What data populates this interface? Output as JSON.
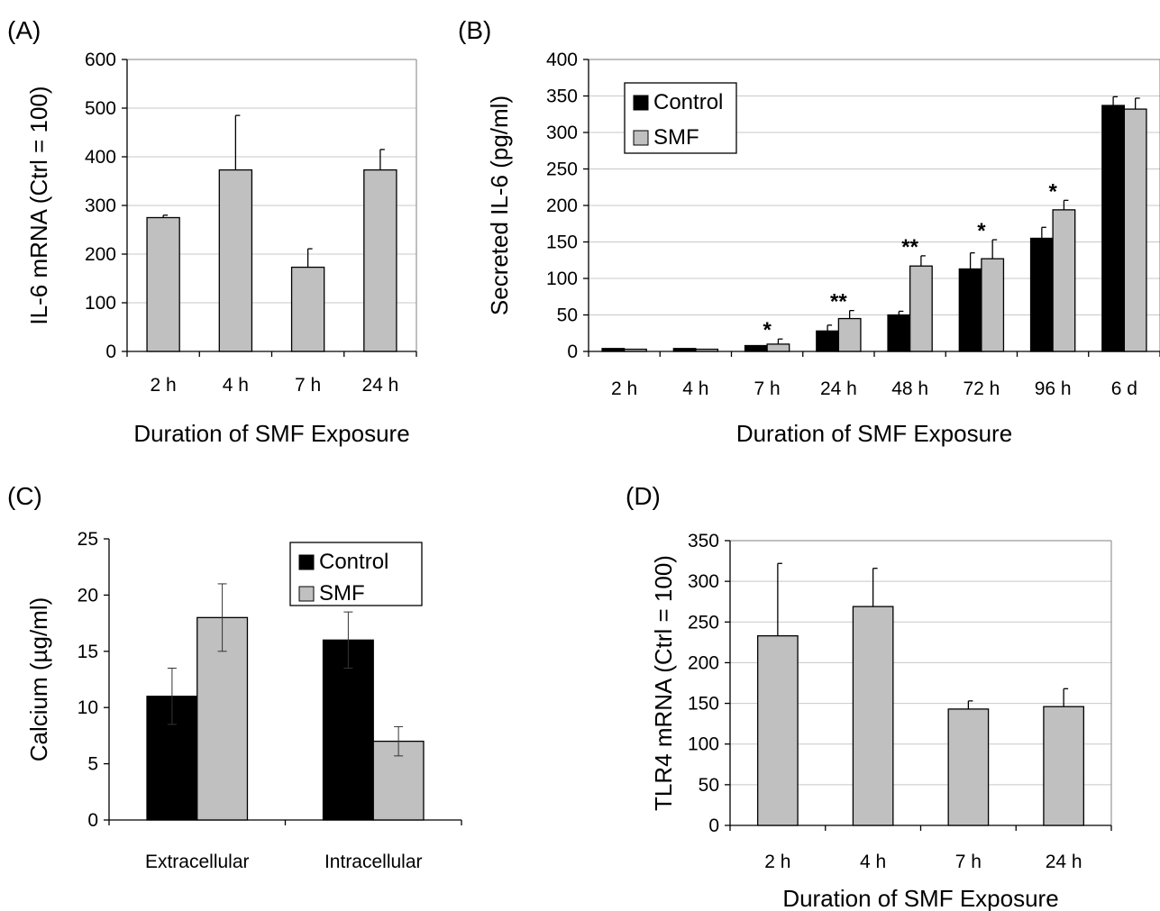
{
  "colors": {
    "control": "#000000",
    "smf": "#c0c0c0",
    "grid": "#c8c8c8",
    "axis": "#000000"
  },
  "chart_data": [
    {
      "panel_label": "(A)",
      "type": "bar",
      "categories": [
        "2 h",
        "4 h",
        "7 h",
        "24 h"
      ],
      "series": [
        {
          "color": "smf",
          "values": [
            275,
            373,
            173,
            373
          ],
          "errors": [
            5,
            112,
            38,
            42
          ]
        }
      ],
      "xlabel": "Duration of SMF Exposure",
      "ylabel": "IL-6 mRNA (Ctrl = 100)",
      "ylim": [
        0,
        600
      ],
      "yticks": [
        0,
        100,
        200,
        300,
        400,
        500,
        600
      ],
      "grid": true
    },
    {
      "panel_label": "(B)",
      "type": "bar",
      "categories": [
        "2 h",
        "4 h",
        "7 h",
        "24 h",
        "48 h",
        "72 h",
        "96 h",
        "6 d"
      ],
      "series": [
        {
          "name": "Control",
          "color": "control",
          "values": [
            4,
            4,
            8,
            28,
            50,
            113,
            155,
            337
          ],
          "errors": [
            0,
            0,
            0,
            8,
            5,
            22,
            15,
            12
          ]
        },
        {
          "name": "SMF",
          "color": "smf",
          "values": [
            3,
            3,
            10,
            45,
            117,
            127,
            194,
            332
          ],
          "errors": [
            0,
            0,
            7,
            11,
            14,
            26,
            13,
            15
          ]
        }
      ],
      "significance": [
        "",
        "",
        "*",
        "**",
        "**",
        "*",
        "*",
        ""
      ],
      "legend": "top-left",
      "xlabel": "Duration of SMF Exposure",
      "ylabel": "Secreted IL-6 (pg/ml)",
      "ylim": [
        0,
        400
      ],
      "yticks": [
        0,
        50,
        100,
        150,
        200,
        250,
        300,
        350,
        400
      ],
      "grid": true
    },
    {
      "panel_label": "(C)",
      "type": "bar",
      "categories": [
        "Extracellular",
        "Intracellular"
      ],
      "series": [
        {
          "name": "Control",
          "color": "control",
          "values": [
            11,
            16
          ],
          "errors": [
            2.5,
            2.5
          ]
        },
        {
          "name": "SMF",
          "color": "smf",
          "values": [
            18,
            7
          ],
          "errors": [
            3,
            1.3
          ]
        }
      ],
      "legend": "top-right",
      "xlabel": "",
      "ylabel": "Calcium (µg/ml)",
      "ylim": [
        0,
        25
      ],
      "yticks": [
        0,
        5,
        10,
        15,
        20,
        25
      ],
      "grid": false
    },
    {
      "panel_label": "(D)",
      "type": "bar",
      "categories": [
        "2 h",
        "4 h",
        "7 h",
        "24 h"
      ],
      "series": [
        {
          "color": "smf",
          "values": [
            233,
            269,
            143,
            146
          ],
          "errors": [
            89,
            47,
            10,
            22
          ]
        }
      ],
      "xlabel": "Duration of SMF Exposure",
      "ylabel": "TLR4 mRNA (Ctrl = 100)",
      "ylim": [
        0,
        350
      ],
      "yticks": [
        0,
        50,
        100,
        150,
        200,
        250,
        300,
        350
      ],
      "grid": true
    }
  ]
}
